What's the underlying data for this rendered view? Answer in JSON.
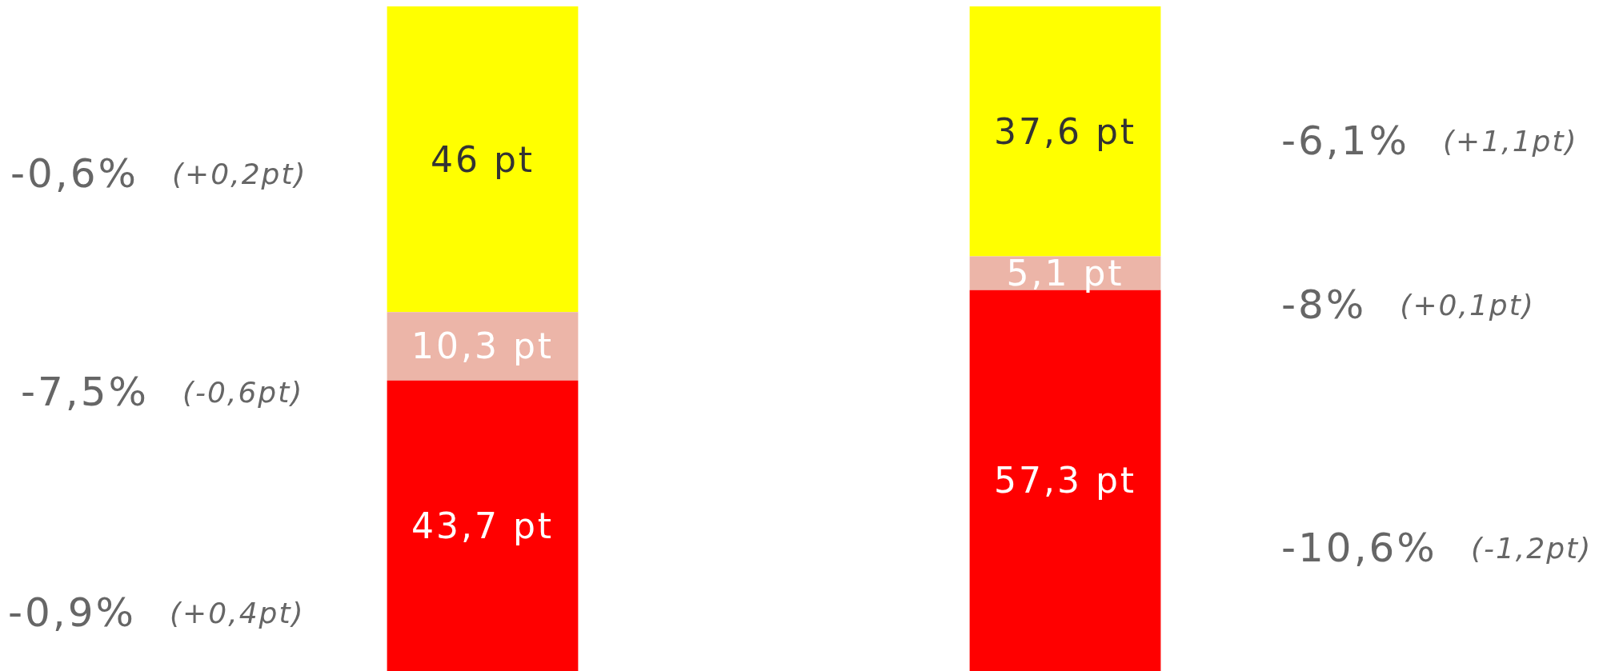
{
  "chart_data": {
    "type": "bar",
    "stacked": true,
    "categories": [
      null,
      null
    ],
    "ylim": [
      0,
      100
    ],
    "legend": false,
    "series": [
      {
        "color": "#ff0000",
        "values": [
          43.7,
          57.3
        ],
        "value_labels": [
          "43,7 pt",
          "57,3 pt"
        ]
      },
      {
        "color": "#ecb5a8",
        "values": [
          10.3,
          5.1
        ],
        "value_labels": [
          "10,3 pt",
          "5,1 pt"
        ]
      },
      {
        "color": "#ffff00",
        "values": [
          46,
          37.6
        ],
        "value_labels": [
          "46 pt",
          "37,6 pt"
        ]
      }
    ],
    "annotations": [
      "-0,6%",
      "(+0,2pt)",
      "-7,5%",
      "(-0,6pt)",
      "-0,9%",
      "(+0,4pt)",
      "-6,1%",
      "(+1,1pt)",
      "-8%",
      "(+0,1pt)",
      "-10,6%",
      "(-1,2pt)"
    ]
  }
}
